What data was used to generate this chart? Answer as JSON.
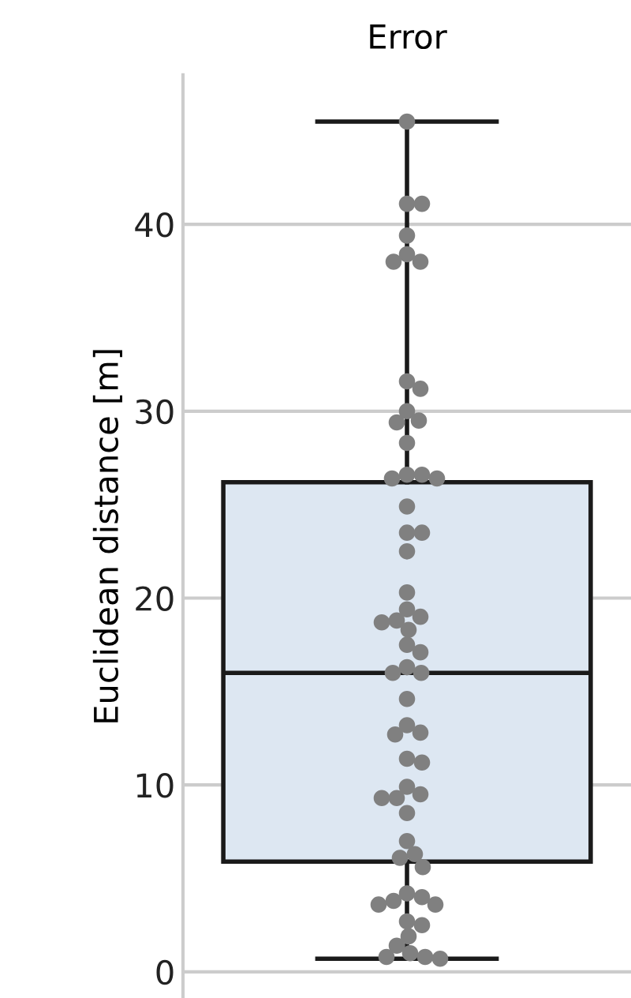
{
  "chart_data": {
    "type": "box",
    "title": "Error",
    "ylabel": "Euclidean distance [m]",
    "categories": [
      null
    ],
    "boxes": [
      {
        "low": 0.7,
        "q1": 5.9,
        "median": 16.0,
        "q3": 26.2,
        "high": 45.5
      }
    ],
    "color": "#dde7f2",
    "series": [
      {
        "type": "scatter",
        "color": "#808080",
        "x": [
          null,
          null,
          null,
          null,
          null,
          null,
          null,
          null,
          null,
          null,
          null,
          null,
          null,
          null,
          null,
          null,
          null,
          null,
          null,
          null,
          null,
          null,
          null,
          null,
          null,
          null,
          null,
          null,
          null,
          null,
          null,
          null,
          null,
          null,
          null,
          null,
          null,
          null,
          null,
          null,
          null,
          null,
          null,
          null,
          null,
          null,
          null,
          null,
          null,
          null,
          null,
          null,
          null,
          null,
          null,
          null,
          null,
          null,
          null,
          null
        ],
        "values": [
          45.5,
          41.1,
          41.1,
          39.4,
          38.4,
          38.0,
          38.0,
          31.6,
          31.2,
          30.0,
          29.5,
          29.4,
          28.3,
          26.6,
          26.6,
          26.4,
          26.4,
          24.9,
          23.5,
          23.5,
          22.5,
          20.3,
          19.4,
          19.0,
          18.8,
          18.7,
          18.3,
          17.5,
          17.1,
          16.3,
          16.0,
          16.0,
          14.6,
          13.2,
          12.8,
          12.7,
          11.4,
          11.2,
          9.9,
          9.5,
          9.3,
          9.3,
          8.5,
          7.0,
          6.3,
          6.1,
          5.6,
          4.2,
          4.0,
          3.8,
          3.6,
          3.6,
          2.7,
          2.5,
          1.9,
          1.4,
          1.0,
          0.8,
          0.8,
          0.7
        ]
      }
    ],
    "ylim": [
      -1.4,
      48
    ],
    "yticks": [
      0,
      10,
      20,
      30,
      40
    ],
    "grid": "y",
    "legend": false
  }
}
